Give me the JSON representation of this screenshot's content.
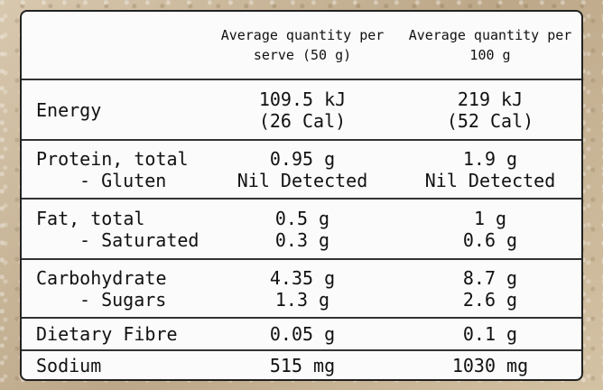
{
  "header": {
    "col1_line1": "Average quantity per",
    "col1_line2": "serve (50 g)",
    "col2_line1": "Average quantity per",
    "col2_line2": "100 g"
  },
  "rows": [
    {
      "name": "energy",
      "label": [
        "Energy"
      ],
      "serve": [
        "109.5 kJ",
        "(26 Cal)"
      ],
      "per100": [
        "219 kJ",
        "(52 Cal)"
      ]
    },
    {
      "name": "protein",
      "label": [
        "Protein, total",
        "- Gluten"
      ],
      "serve": [
        "0.95 g",
        "Nil Detected"
      ],
      "per100": [
        "1.9 g",
        "Nil Detected"
      ]
    },
    {
      "name": "fat",
      "label": [
        "Fat, total",
        "- Saturated"
      ],
      "serve": [
        "0.5 g",
        "0.3 g"
      ],
      "per100": [
        "1 g",
        "0.6 g"
      ]
    },
    {
      "name": "carbohydrate",
      "label": [
        "Carbohydrate",
        "- Sugars"
      ],
      "serve": [
        "4.35 g",
        "1.3 g"
      ],
      "per100": [
        "8.7 g",
        "2.6 g"
      ]
    },
    {
      "name": "dietary-fibre",
      "label": [
        "Dietary Fibre"
      ],
      "serve": [
        "0.05 g"
      ],
      "per100": [
        "0.1 g"
      ]
    },
    {
      "name": "sodium",
      "label": [
        "Sodium"
      ],
      "serve": [
        "515 mg"
      ],
      "per100": [
        "1030 mg"
      ]
    }
  ]
}
